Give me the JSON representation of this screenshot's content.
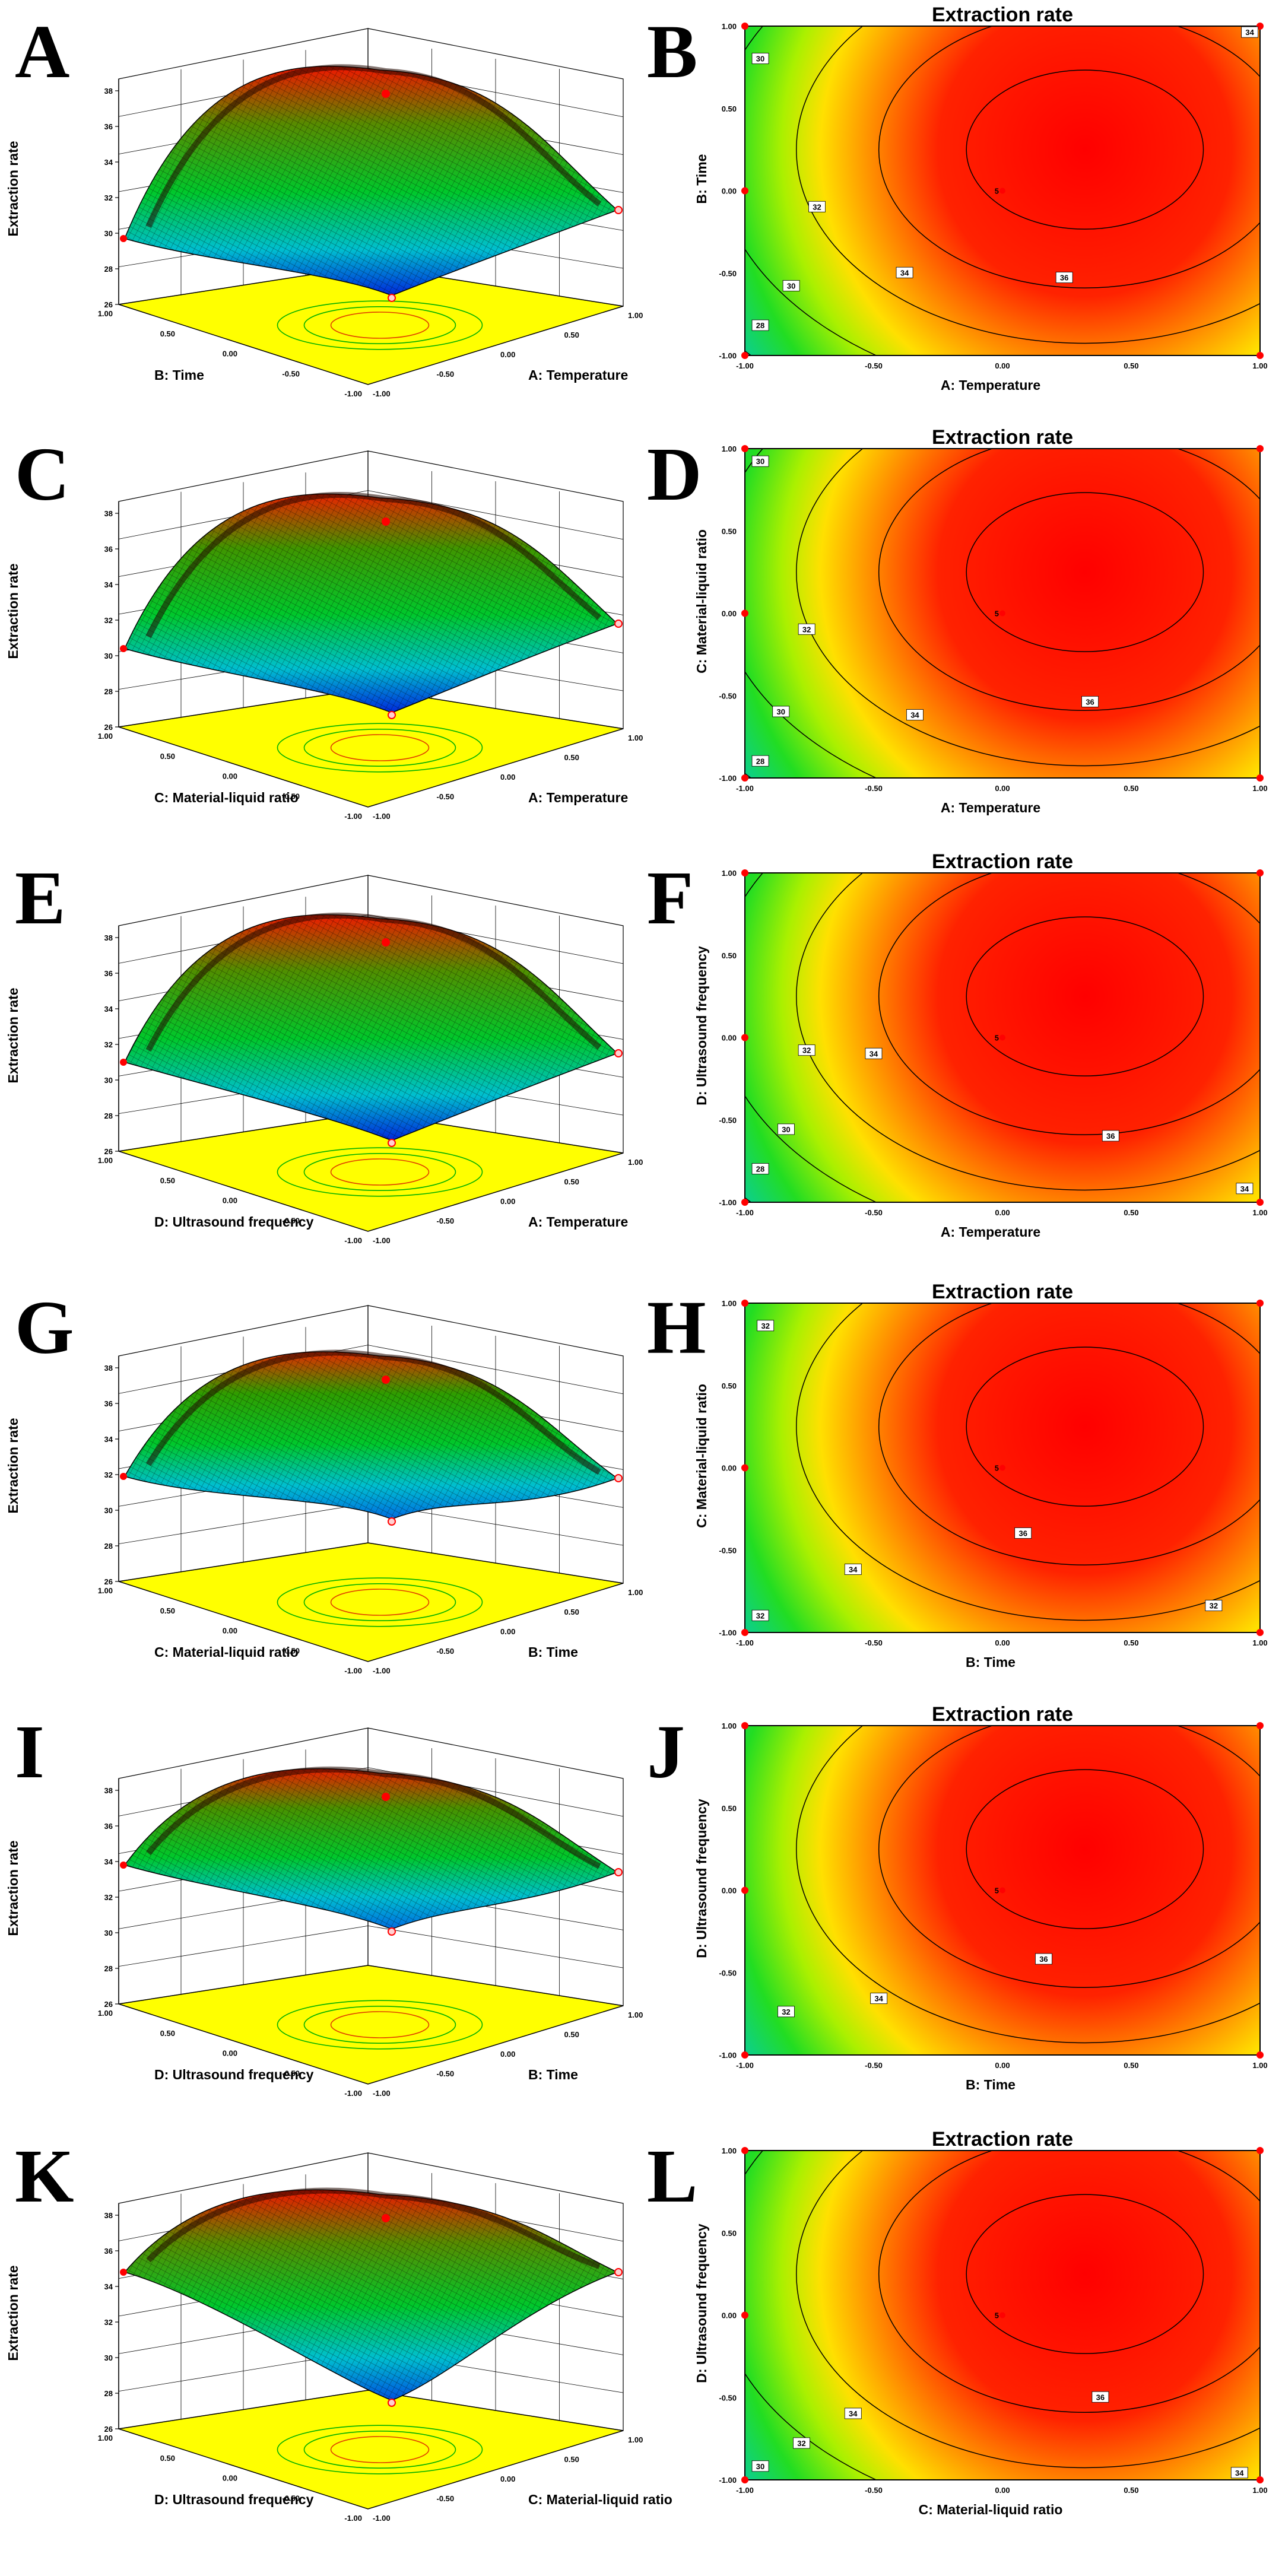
{
  "figure": {
    "colors": {
      "floor": "#ffff00",
      "contour_line": "#000000",
      "design_point": "#ff0000",
      "surface_low": "#00a8e0",
      "surface_mid": "#00c000",
      "surface_high": "#ff0000",
      "mesh": "#000000"
    },
    "code_ticks": [
      "-1.00",
      "-0.50",
      "0.00",
      "0.50",
      "1.00"
    ],
    "response_axis_ticks": [
      "26",
      "28",
      "30",
      "32",
      "34",
      "36",
      "38"
    ],
    "response_label": "Extraction rate",
    "contour_title": "Extraction rate"
  },
  "chart_data": [
    {
      "panel": "A",
      "type": "surface3d",
      "response": "Extraction rate",
      "x_factor": "A: Temperature",
      "y_factor": "B: Time",
      "zlim": [
        26,
        38
      ],
      "z_ticks": [
        26,
        28,
        30,
        32,
        34,
        36,
        38
      ],
      "x_range": [
        -1,
        1
      ],
      "y_range": [
        -1,
        1
      ],
      "center_value": 37.5,
      "corner_values": {
        "xlow_ylow": 25.5,
        "xhigh_ylow": 30.3,
        "xlow_yhigh": 28.7,
        "xhigh_yhigh": 32.5
      }
    },
    {
      "panel": "B",
      "type": "contour",
      "title": "Extraction rate",
      "xlabel": "A: Temperature",
      "ylabel": "B: Time",
      "x_ticks": [
        "-1.00",
        "-0.50",
        "0.00",
        "0.50",
        "1.00"
      ],
      "y_ticks": [
        "-1.00",
        "-0.50",
        "0.00",
        "0.50",
        "1.00"
      ],
      "contour_levels": [
        28,
        30,
        32,
        34,
        36
      ],
      "contour_labels": [
        {
          "text": "28",
          "x": -0.94,
          "y": -0.82
        },
        {
          "text": "30",
          "x": -0.82,
          "y": -0.58
        },
        {
          "text": "32",
          "x": -0.72,
          "y": -0.1
        },
        {
          "text": "34",
          "x": -0.38,
          "y": -0.5
        },
        {
          "text": "36",
          "x": 0.24,
          "y": -0.53
        },
        {
          "text": "30",
          "x": -0.94,
          "y": 0.8
        },
        {
          "text": "34",
          "x": 0.96,
          "y": 0.96
        }
      ],
      "center_label": "5",
      "xlim": [
        -1,
        1
      ],
      "ylim": [
        -1,
        1
      ]
    },
    {
      "panel": "C",
      "type": "surface3d",
      "response": "Extraction rate",
      "x_factor": "A: Temperature",
      "y_factor": "C: Material-liquid ratio",
      "zlim": [
        26,
        38
      ],
      "z_ticks": [
        26,
        28,
        30,
        32,
        34,
        36,
        38
      ],
      "x_range": [
        -1,
        1
      ],
      "y_range": [
        -1,
        1
      ],
      "center_value": 37.2,
      "corner_values": {
        "xlow_ylow": 25.8,
        "xhigh_ylow": 30.8,
        "xlow_yhigh": 29.4,
        "xhigh_yhigh": 33.2
      }
    },
    {
      "panel": "D",
      "type": "contour",
      "title": "Extraction rate",
      "xlabel": "A: Temperature",
      "ylabel": "C: Material-liquid ratio",
      "x_ticks": [
        "-1.00",
        "-0.50",
        "0.00",
        "0.50",
        "1.00"
      ],
      "y_ticks": [
        "-1.00",
        "-0.50",
        "0.00",
        "0.50",
        "1.00"
      ],
      "contour_levels": [
        28,
        30,
        32,
        34,
        36
      ],
      "contour_labels": [
        {
          "text": "28",
          "x": -0.94,
          "y": -0.9
        },
        {
          "text": "30",
          "x": -0.86,
          "y": -0.6
        },
        {
          "text": "32",
          "x": -0.76,
          "y": -0.1
        },
        {
          "text": "34",
          "x": -0.34,
          "y": -0.62
        },
        {
          "text": "36",
          "x": 0.34,
          "y": -0.54
        },
        {
          "text": "30",
          "x": -0.94,
          "y": 0.92
        }
      ],
      "center_label": "5",
      "xlim": [
        -1,
        1
      ],
      "ylim": [
        -1,
        1
      ]
    },
    {
      "panel": "E",
      "type": "surface3d",
      "response": "Extraction rate",
      "x_factor": "A: Temperature",
      "y_factor": "D: Ultrasound frequency",
      "zlim": [
        26,
        38
      ],
      "z_ticks": [
        26,
        28,
        30,
        32,
        34,
        36,
        38
      ],
      "x_range": [
        -1,
        1
      ],
      "y_range": [
        -1,
        1
      ],
      "center_value": 37.4,
      "corner_values": {
        "xlow_ylow": 25.6,
        "xhigh_ylow": 30.5,
        "xlow_yhigh": 30.0,
        "xhigh_yhigh": 32.9
      }
    },
    {
      "panel": "F",
      "type": "contour",
      "title": "Extraction rate",
      "xlabel": "A: Temperature",
      "ylabel": "D: Ultrasound frequency",
      "x_ticks": [
        "-1.00",
        "-0.50",
        "0.00",
        "0.50",
        "1.00"
      ],
      "y_ticks": [
        "-1.00",
        "-0.50",
        "0.00",
        "0.50",
        "1.00"
      ],
      "contour_levels": [
        28,
        30,
        32,
        34,
        36
      ],
      "contour_labels": [
        {
          "text": "28",
          "x": -0.94,
          "y": -0.8
        },
        {
          "text": "30",
          "x": -0.84,
          "y": -0.56
        },
        {
          "text": "32",
          "x": -0.76,
          "y": -0.08
        },
        {
          "text": "34",
          "x": -0.5,
          "y": -0.1
        },
        {
          "text": "36",
          "x": 0.42,
          "y": -0.6
        },
        {
          "text": "34",
          "x": 0.94,
          "y": -0.92
        }
      ],
      "center_label": "5",
      "xlim": [
        -1,
        1
      ],
      "ylim": [
        -1,
        1
      ]
    },
    {
      "panel": "G",
      "type": "surface3d",
      "response": "Extraction rate",
      "x_factor": "B: Time",
      "y_factor": "C: Material-liquid ratio",
      "zlim": [
        26,
        38
      ],
      "z_ticks": [
        26,
        28,
        30,
        32,
        34,
        36,
        38
      ],
      "x_range": [
        -1,
        1
      ],
      "y_range": [
        -1,
        1
      ],
      "center_value": 37.0,
      "corner_values": {
        "xlow_ylow": 28.5,
        "xhigh_ylow": 30.8,
        "xlow_yhigh": 30.9,
        "xhigh_yhigh": 32.3
      }
    },
    {
      "panel": "H",
      "type": "contour",
      "title": "Extraction rate",
      "xlabel": "B: Time",
      "ylabel": "C: Material-liquid ratio",
      "x_ticks": [
        "-1.00",
        "-0.50",
        "0.00",
        "0.50",
        "1.00"
      ],
      "y_ticks": [
        "-1.00",
        "-0.50",
        "0.00",
        "0.50",
        "1.00"
      ],
      "contour_levels": [
        32,
        34,
        36
      ],
      "contour_labels": [
        {
          "text": "32",
          "x": -0.92,
          "y": 0.86
        },
        {
          "text": "36",
          "x": 0.08,
          "y": -0.4
        },
        {
          "text": "34",
          "x": -0.58,
          "y": -0.62
        },
        {
          "text": "32",
          "x": 0.82,
          "y": -0.84
        },
        {
          "text": "32",
          "x": -0.94,
          "y": -0.9
        }
      ],
      "center_label": "5",
      "xlim": [
        -1,
        1
      ],
      "ylim": [
        -1,
        1
      ]
    },
    {
      "panel": "I",
      "type": "surface3d",
      "response": "Extraction rate",
      "x_factor": "B: Time",
      "y_factor": "D: Ultrasound frequency",
      "zlim": [
        26,
        38
      ],
      "z_ticks": [
        26,
        28,
        30,
        32,
        34,
        36,
        38
      ],
      "x_range": [
        -1,
        1
      ],
      "y_range": [
        -1,
        1
      ],
      "center_value": 37.3,
      "corner_values": {
        "xlow_ylow": 29.2,
        "xhigh_ylow": 32.4,
        "xlow_yhigh": 32.8,
        "xhigh_yhigh": 33.6
      }
    },
    {
      "panel": "J",
      "type": "contour",
      "title": "Extraction rate",
      "xlabel": "B: Time",
      "ylabel": "D: Ultrasound frequency",
      "x_ticks": [
        "-1.00",
        "-0.50",
        "0.00",
        "0.50",
        "1.00"
      ],
      "y_ticks": [
        "-1.00",
        "-0.50",
        "0.00",
        "0.50",
        "1.00"
      ],
      "contour_levels": [
        32,
        34,
        36
      ],
      "contour_labels": [
        {
          "text": "36",
          "x": 0.16,
          "y": -0.42
        },
        {
          "text": "34",
          "x": -0.48,
          "y": -0.66
        },
        {
          "text": "32",
          "x": -0.84,
          "y": -0.74
        }
      ],
      "center_label": "5",
      "xlim": [
        -1,
        1
      ],
      "ylim": [
        -1,
        1
      ]
    },
    {
      "panel": "K",
      "type": "surface3d",
      "response": "Extraction rate",
      "x_factor": "C: Material-liquid ratio",
      "y_factor": "D: Ultrasound frequency",
      "zlim": [
        26,
        38
      ],
      "z_ticks": [
        26,
        28,
        30,
        32,
        34,
        36,
        38
      ],
      "x_range": [
        -1,
        1
      ],
      "y_range": [
        -1,
        1
      ],
      "center_value": 37.5,
      "corner_values": {
        "xlow_ylow": 26.6,
        "xhigh_ylow": 33.8,
        "xlow_yhigh": 33.8,
        "xhigh_yhigh": 34.4
      }
    },
    {
      "panel": "L",
      "type": "contour",
      "title": "Extraction rate",
      "xlabel": "C: Material-liquid ratio",
      "ylabel": "D: Ultrasound frequency",
      "x_ticks": [
        "-1.00",
        "-0.50",
        "0.00",
        "0.50",
        "1.00"
      ],
      "y_ticks": [
        "-1.00",
        "-0.50",
        "0.00",
        "0.50",
        "1.00"
      ],
      "contour_levels": [
        30,
        32,
        34,
        36
      ],
      "contour_labels": [
        {
          "text": "36",
          "x": 0.38,
          "y": -0.5
        },
        {
          "text": "34",
          "x": -0.58,
          "y": -0.6
        },
        {
          "text": "32",
          "x": -0.78,
          "y": -0.78
        },
        {
          "text": "30",
          "x": -0.94,
          "y": -0.92
        },
        {
          "text": "34",
          "x": 0.92,
          "y": -0.96
        }
      ],
      "center_label": "5",
      "xlim": [
        -1,
        1
      ],
      "ylim": [
        -1,
        1
      ]
    }
  ]
}
